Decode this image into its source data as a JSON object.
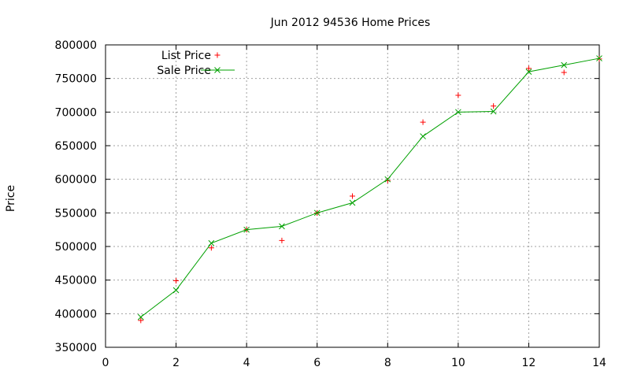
{
  "chart_data": {
    "type": "line",
    "title": "Jun 2012 94536 Home Prices",
    "xlabel": "",
    "ylabel": "Price",
    "xlim": [
      0,
      14
    ],
    "ylim": [
      350000,
      800000
    ],
    "xticks": [
      0,
      2,
      4,
      6,
      8,
      10,
      12,
      14
    ],
    "yticks": [
      350000,
      400000,
      450000,
      500000,
      550000,
      600000,
      650000,
      700000,
      750000,
      800000
    ],
    "xtick_labels": [
      "0",
      "2",
      "4",
      "6",
      "8",
      "10",
      "12",
      "14"
    ],
    "ytick_labels": [
      "350000",
      "400000",
      "450000",
      "500000",
      "550000",
      "600000",
      "650000",
      "700000",
      "750000",
      "800000"
    ],
    "grid": true,
    "legend_position": "top-left",
    "x": [
      1,
      2,
      3,
      4,
      5,
      6,
      7,
      8,
      9,
      10,
      11,
      12,
      13,
      14
    ],
    "series": [
      {
        "name": "List Price",
        "style": "points",
        "marker": "plus",
        "color": "#ff0000",
        "values": [
          390000,
          449000,
          498000,
          525000,
          509000,
          550000,
          575000,
          598000,
          685000,
          725000,
          709000,
          765000,
          759000,
          779000
        ]
      },
      {
        "name": "Sale Price",
        "style": "linespoints",
        "marker": "cross",
        "color": "#00a000",
        "values": [
          395000,
          435000,
          505000,
          525000,
          530000,
          550000,
          565000,
          600000,
          664000,
          700000,
          701000,
          760000,
          770000,
          780000
        ]
      }
    ]
  }
}
